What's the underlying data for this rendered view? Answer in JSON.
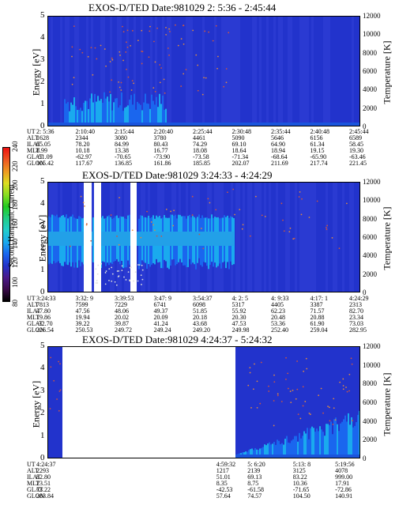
{
  "colorbar": {
    "label": "Second Harmonic Current",
    "ticks": [
      "80",
      "100",
      "120",
      "140",
      "160",
      "180",
      "200",
      "220",
      "240"
    ],
    "colors": [
      "#000000",
      "#3a0a4a",
      "#4a1a8a",
      "#2233cc",
      "#1a66ee",
      "#1aaaee",
      "#22cccc",
      "#22cc88",
      "#22cc22",
      "#88dd22",
      "#dddd22",
      "#ee9922",
      "#ee5522",
      "#ee1111"
    ]
  },
  "panels": [
    {
      "title": "EXOS-D/TED   Date:981029  2: 5:36 - 2:45:44",
      "ylabel": "Energy [eV]",
      "y2label": "Temperature [K]",
      "yticks": [
        "5",
        "4",
        "3",
        "2",
        "1",
        "0"
      ],
      "y2ticks": [
        "12000",
        "10000",
        "8000",
        "6000",
        "4000",
        "2000",
        "0"
      ],
      "info_labels": [
        "UT",
        "ALT",
        "ILAT",
        "MLT",
        "GLAT",
        "GLON"
      ],
      "info_cols": [
        [
          "2: 5:36",
          "1628",
          "65.05",
          "8.99",
          "-51.09",
          "105.42"
        ],
        [
          "2:10:40",
          "2344",
          "78.20",
          "10.18",
          "-62.97",
          "117.67"
        ],
        [
          "2:15:44",
          "3080",
          "84.99",
          "13.38",
          "-70.65",
          "136.85"
        ],
        [
          "2:20:40",
          "3780",
          "80.43",
          "16.77",
          "-73.90",
          "161.86"
        ],
        [
          "2:25:44",
          "4461",
          "74.29",
          "18.08",
          "-73.58",
          "185.85"
        ],
        [
          "2:30:48",
          "5090",
          "69.10",
          "18.64",
          "-71.34",
          "202.07"
        ],
        [
          "2:35:44",
          "5646",
          "64.90",
          "18.94",
          "-68.64",
          "211.69"
        ],
        [
          "2:40:48",
          "6156",
          "61.34",
          "19.15",
          "-65.90",
          "217.74"
        ],
        [
          "2:45:44",
          "6589",
          "58.45",
          "19.30",
          "-63.46",
          "221.45"
        ]
      ]
    },
    {
      "title": "EXOS-D/TED   Date:981029  3:24:33 - 4:24:29",
      "ylabel": "Energy [eV]",
      "y2label": "Temperature [K]",
      "yticks": [
        "5",
        "4",
        "3",
        "2",
        "1",
        "0"
      ],
      "y2ticks": [
        "12000",
        "10000",
        "8000",
        "6000",
        "4000",
        "2000",
        "0"
      ],
      "info_labels": [
        "UT",
        "ALT",
        "ILAT",
        "MLT",
        "GLAT",
        "GLON"
      ],
      "info_cols": [
        [
          "3:24:33",
          "7813",
          "47.80",
          "19.86",
          "-32.70",
          "226.54"
        ],
        [
          "3:32: 9",
          "7599",
          "47.56",
          "19.94",
          "39.22",
          "250.53"
        ],
        [
          "3:39:53",
          "7229",
          "48.06",
          "20.02",
          "39.87",
          "249.72"
        ],
        [
          "3:47: 9",
          "6741",
          "49.37",
          "20.09",
          "41.24",
          "249.24"
        ],
        [
          "3:54:37",
          "6098",
          "51.85",
          "20.18",
          "43.68",
          "249.20"
        ],
        [
          "4: 2: 5",
          "5317",
          "55.92",
          "20.30",
          "47.53",
          "249.98"
        ],
        [
          "4: 9:33",
          "4405",
          "62.23",
          "20.48",
          "53.36",
          "252.40"
        ],
        [
          "4:17: 1",
          "3387",
          "71.57",
          "20.88",
          "61.90",
          "259.04"
        ],
        [
          "4:24:29",
          "2313",
          "82.70",
          "23.34",
          "73.03",
          "282.95"
        ]
      ]
    },
    {
      "title": "EXOS-D/TED   Date:981029  4:24:37 - 5:24:32",
      "ylabel": "Energy [eV]",
      "y2label": "Temperature [K]",
      "yticks": [
        "5",
        "4",
        "3",
        "2",
        "1",
        "0"
      ],
      "y2ticks": [
        "12000",
        "10000",
        "8000",
        "6000",
        "4000",
        "2000",
        "0"
      ],
      "info_labels": [
        "UT",
        "ALT",
        "ILAT",
        "MLT",
        "GLAT",
        "GLON"
      ],
      "info_cols": [
        [
          "4:24:37",
          "2293",
          "82.80",
          "23.51",
          "73.22",
          "283.84"
        ],
        [
          "4:59:32",
          "1217",
          "51.01",
          "8.35",
          "-42.53",
          "57.64"
        ],
        [
          "5: 6:20",
          "2139",
          "69.13",
          "8.75",
          "-61.58",
          "74.57"
        ],
        [
          "5:13: 8",
          "3125",
          "83.22",
          "10.36",
          "-71.65",
          "104.50"
        ],
        [
          "5:19:56",
          "4078",
          "999.00",
          "17.91",
          "-72.86",
          "140.91"
        ]
      ]
    }
  ],
  "chart_data": [
    {
      "type": "heatmap",
      "title": "EXOS-D/TED   Date:981029  2: 5:36 - 2:45:44",
      "xlabel": "UT",
      "ylabel": "Energy [eV]",
      "y2label": "Temperature [K]",
      "ylim": [
        0,
        5
      ],
      "y2lim": [
        0,
        12000
      ],
      "x_ticks": [
        "2: 5:36",
        "2:10:40",
        "2:15:44",
        "2:20:40",
        "2:25:44",
        "2:30:48",
        "2:35:44",
        "2:40:48",
        "2:45:44"
      ],
      "colorbar": {
        "label": "Second Harmonic Current",
        "range": [
          80,
          240
        ]
      }
    },
    {
      "type": "heatmap",
      "title": "EXOS-D/TED   Date:981029  3:24:33 - 4:24:29",
      "xlabel": "UT",
      "ylabel": "Energy [eV]",
      "y2label": "Temperature [K]",
      "ylim": [
        0,
        5
      ],
      "y2lim": [
        0,
        12000
      ],
      "x_ticks": [
        "3:24:33",
        "3:32: 9",
        "3:39:53",
        "3:47: 9",
        "3:54:37",
        "4: 2: 5",
        "4: 9:33",
        "4:17: 1",
        "4:24:29"
      ],
      "colorbar": {
        "label": "Second Harmonic Current",
        "range": [
          80,
          240
        ]
      }
    },
    {
      "type": "heatmap",
      "title": "EXOS-D/TED   Date:981029  4:24:37 - 5:24:32",
      "xlabel": "UT",
      "ylabel": "Energy [eV]",
      "y2label": "Temperature [K]",
      "ylim": [
        0,
        5
      ],
      "y2lim": [
        0,
        12000
      ],
      "x_ticks": [
        "4:24:37",
        "4:59:32",
        "5: 6:20",
        "5:13: 8",
        "5:19:56"
      ],
      "colorbar": {
        "label": "Second Harmonic Current",
        "range": [
          80,
          240
        ]
      }
    }
  ]
}
